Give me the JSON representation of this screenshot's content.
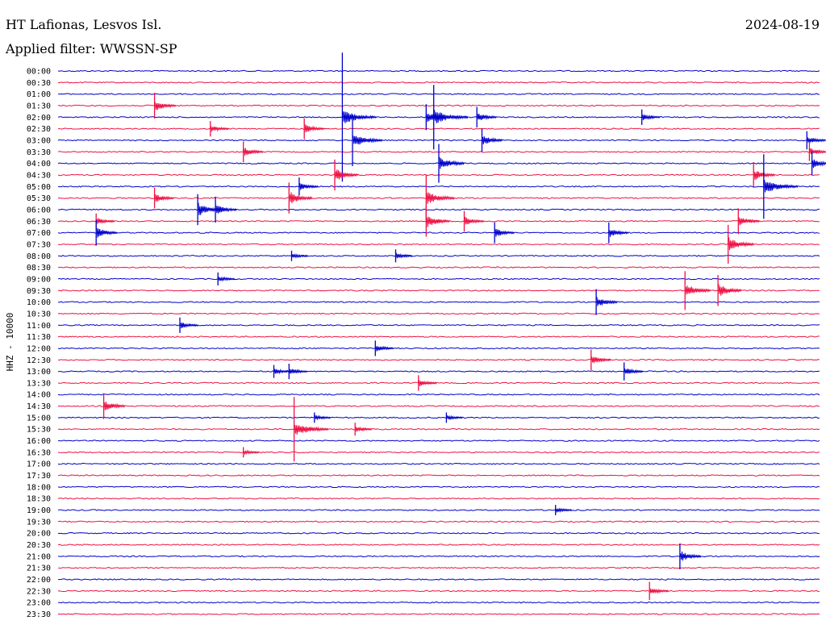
{
  "header": {
    "station": "HT Lafionas, Lesvos Isl.",
    "date": "2024-08-19",
    "filter": "Applied filter: WWSSN-SP"
  },
  "chart_data": {
    "type": "line",
    "title": "HT Lafionas, Lesvos Isl.",
    "ylabel": "HHZ - 10000",
    "grid": false,
    "colors": [
      "#0000cc",
      "#ee1144"
    ],
    "rows": [
      "00:00",
      "00:30",
      "01:00",
      "01:30",
      "02:00",
      "02:30",
      "03:00",
      "03:30",
      "04:00",
      "04:30",
      "05:00",
      "05:30",
      "06:00",
      "06:30",
      "07:00",
      "07:30",
      "08:00",
      "08:30",
      "09:00",
      "09:30",
      "10:00",
      "10:30",
      "11:00",
      "11:30",
      "12:00",
      "12:30",
      "13:00",
      "13:30",
      "14:00",
      "14:30",
      "15:00",
      "15:30",
      "16:00",
      "16:30",
      "17:00",
      "17:30",
      "18:00",
      "18:30",
      "19:00",
      "19:30",
      "20:00",
      "20:30",
      "21:00",
      "21:30",
      "22:00",
      "22:30",
      "23:00",
      "23:30"
    ],
    "row_minutes": 30,
    "events": [
      {
        "row": 3,
        "minute": 3.8,
        "amplitude": 1.0
      },
      {
        "row": 4,
        "minute": 11.2,
        "amplitude": 5.0
      },
      {
        "row": 4,
        "minute": 14.5,
        "amplitude": 1.0
      },
      {
        "row": 4,
        "minute": 14.8,
        "amplitude": 2.5
      },
      {
        "row": 4,
        "minute": 16.5,
        "amplitude": 0.8
      },
      {
        "row": 4,
        "minute": 23.0,
        "amplitude": 0.6
      },
      {
        "row": 5,
        "minute": 6.0,
        "amplitude": 0.6
      },
      {
        "row": 5,
        "minute": 9.7,
        "amplitude": 0.8
      },
      {
        "row": 6,
        "minute": 11.6,
        "amplitude": 2.0
      },
      {
        "row": 6,
        "minute": 16.7,
        "amplitude": 0.9
      },
      {
        "row": 6,
        "minute": 29.5,
        "amplitude": 0.7
      },
      {
        "row": 7,
        "minute": 7.3,
        "amplitude": 0.8
      },
      {
        "row": 7,
        "minute": 29.6,
        "amplitude": 0.7
      },
      {
        "row": 8,
        "minute": 15.0,
        "amplitude": 1.5
      },
      {
        "row": 8,
        "minute": 29.7,
        "amplitude": 0.9
      },
      {
        "row": 9,
        "minute": 10.9,
        "amplitude": 1.2
      },
      {
        "row": 9,
        "minute": 27.4,
        "amplitude": 1.0
      },
      {
        "row": 10,
        "minute": 9.5,
        "amplitude": 0.7
      },
      {
        "row": 10,
        "minute": 27.8,
        "amplitude": 2.5
      },
      {
        "row": 11,
        "minute": 3.8,
        "amplitude": 0.8
      },
      {
        "row": 11,
        "minute": 9.1,
        "amplitude": 1.2
      },
      {
        "row": 11,
        "minute": 14.5,
        "amplitude": 1.8
      },
      {
        "row": 12,
        "minute": 5.5,
        "amplitude": 1.2
      },
      {
        "row": 12,
        "minute": 6.2,
        "amplitude": 1.0
      },
      {
        "row": 13,
        "minute": 1.5,
        "amplitude": 0.6
      },
      {
        "row": 13,
        "minute": 14.5,
        "amplitude": 1.2
      },
      {
        "row": 13,
        "minute": 16.0,
        "amplitude": 0.8
      },
      {
        "row": 13,
        "minute": 26.8,
        "amplitude": 1.0
      },
      {
        "row": 14,
        "minute": 1.5,
        "amplitude": 1.0
      },
      {
        "row": 14,
        "minute": 17.2,
        "amplitude": 0.8
      },
      {
        "row": 14,
        "minute": 21.7,
        "amplitude": 0.8
      },
      {
        "row": 15,
        "minute": 26.4,
        "amplitude": 1.5
      },
      {
        "row": 16,
        "minute": 9.2,
        "amplitude": 0.4
      },
      {
        "row": 16,
        "minute": 13.3,
        "amplitude": 0.5
      },
      {
        "row": 18,
        "minute": 6.3,
        "amplitude": 0.5
      },
      {
        "row": 19,
        "minute": 24.7,
        "amplitude": 1.5
      },
      {
        "row": 19,
        "minute": 26.0,
        "amplitude": 1.2
      },
      {
        "row": 20,
        "minute": 21.2,
        "amplitude": 1.0
      },
      {
        "row": 22,
        "minute": 4.8,
        "amplitude": 0.6
      },
      {
        "row": 24,
        "minute": 12.5,
        "amplitude": 0.6
      },
      {
        "row": 25,
        "minute": 21.0,
        "amplitude": 0.8
      },
      {
        "row": 26,
        "minute": 8.5,
        "amplitude": 0.5
      },
      {
        "row": 26,
        "minute": 9.1,
        "amplitude": 0.6
      },
      {
        "row": 26,
        "minute": 22.3,
        "amplitude": 0.7
      },
      {
        "row": 27,
        "minute": 14.2,
        "amplitude": 0.6
      },
      {
        "row": 29,
        "minute": 1.8,
        "amplitude": 1.0
      },
      {
        "row": 30,
        "minute": 10.1,
        "amplitude": 0.4
      },
      {
        "row": 30,
        "minute": 15.3,
        "amplitude": 0.4
      },
      {
        "row": 31,
        "minute": 9.3,
        "amplitude": 2.5
      },
      {
        "row": 31,
        "minute": 11.7,
        "amplitude": 0.5
      },
      {
        "row": 33,
        "minute": 7.3,
        "amplitude": 0.4
      },
      {
        "row": 38,
        "minute": 19.6,
        "amplitude": 0.4
      },
      {
        "row": 42,
        "minute": 24.5,
        "amplitude": 1.0
      },
      {
        "row": 45,
        "minute": 23.3,
        "amplitude": 0.7
      }
    ]
  }
}
